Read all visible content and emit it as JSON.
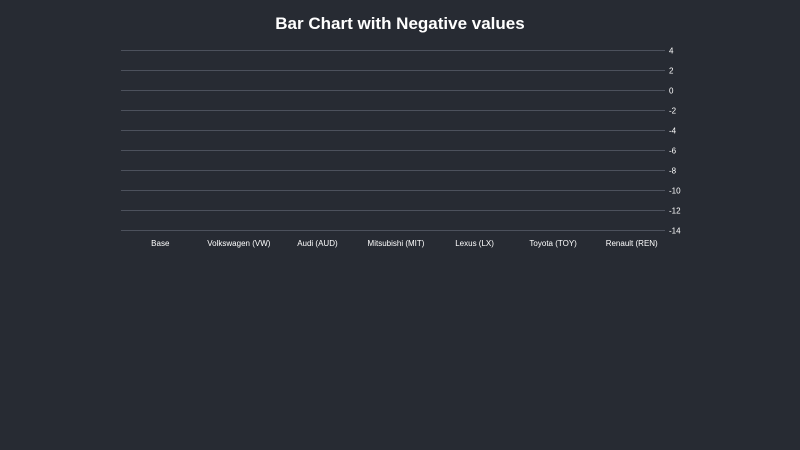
{
  "chart_data": {
    "type": "bar",
    "title": "Bar Chart with Negative values",
    "xlabel": "",
    "ylabel": "",
    "categories": [
      "Base",
      "Volkswagen (VW)",
      "Audi (AUD)",
      "Mitsubishi (MIT)",
      "Lexus (LX)",
      "Toyota (TOY)",
      "Renault (REN)"
    ],
    "values": [
      null,
      null,
      null,
      null,
      null,
      null,
      null
    ],
    "ylim": [
      -14,
      4
    ],
    "yticks": [
      4,
      2,
      0,
      -2,
      -4,
      -6,
      -8,
      -10,
      -12,
      -14
    ],
    "y_axis_side": "right",
    "grid": true,
    "legend": "none",
    "colors": {
      "background": "#272b33",
      "grid": "#4c515c",
      "text": "#ffffff"
    }
  }
}
